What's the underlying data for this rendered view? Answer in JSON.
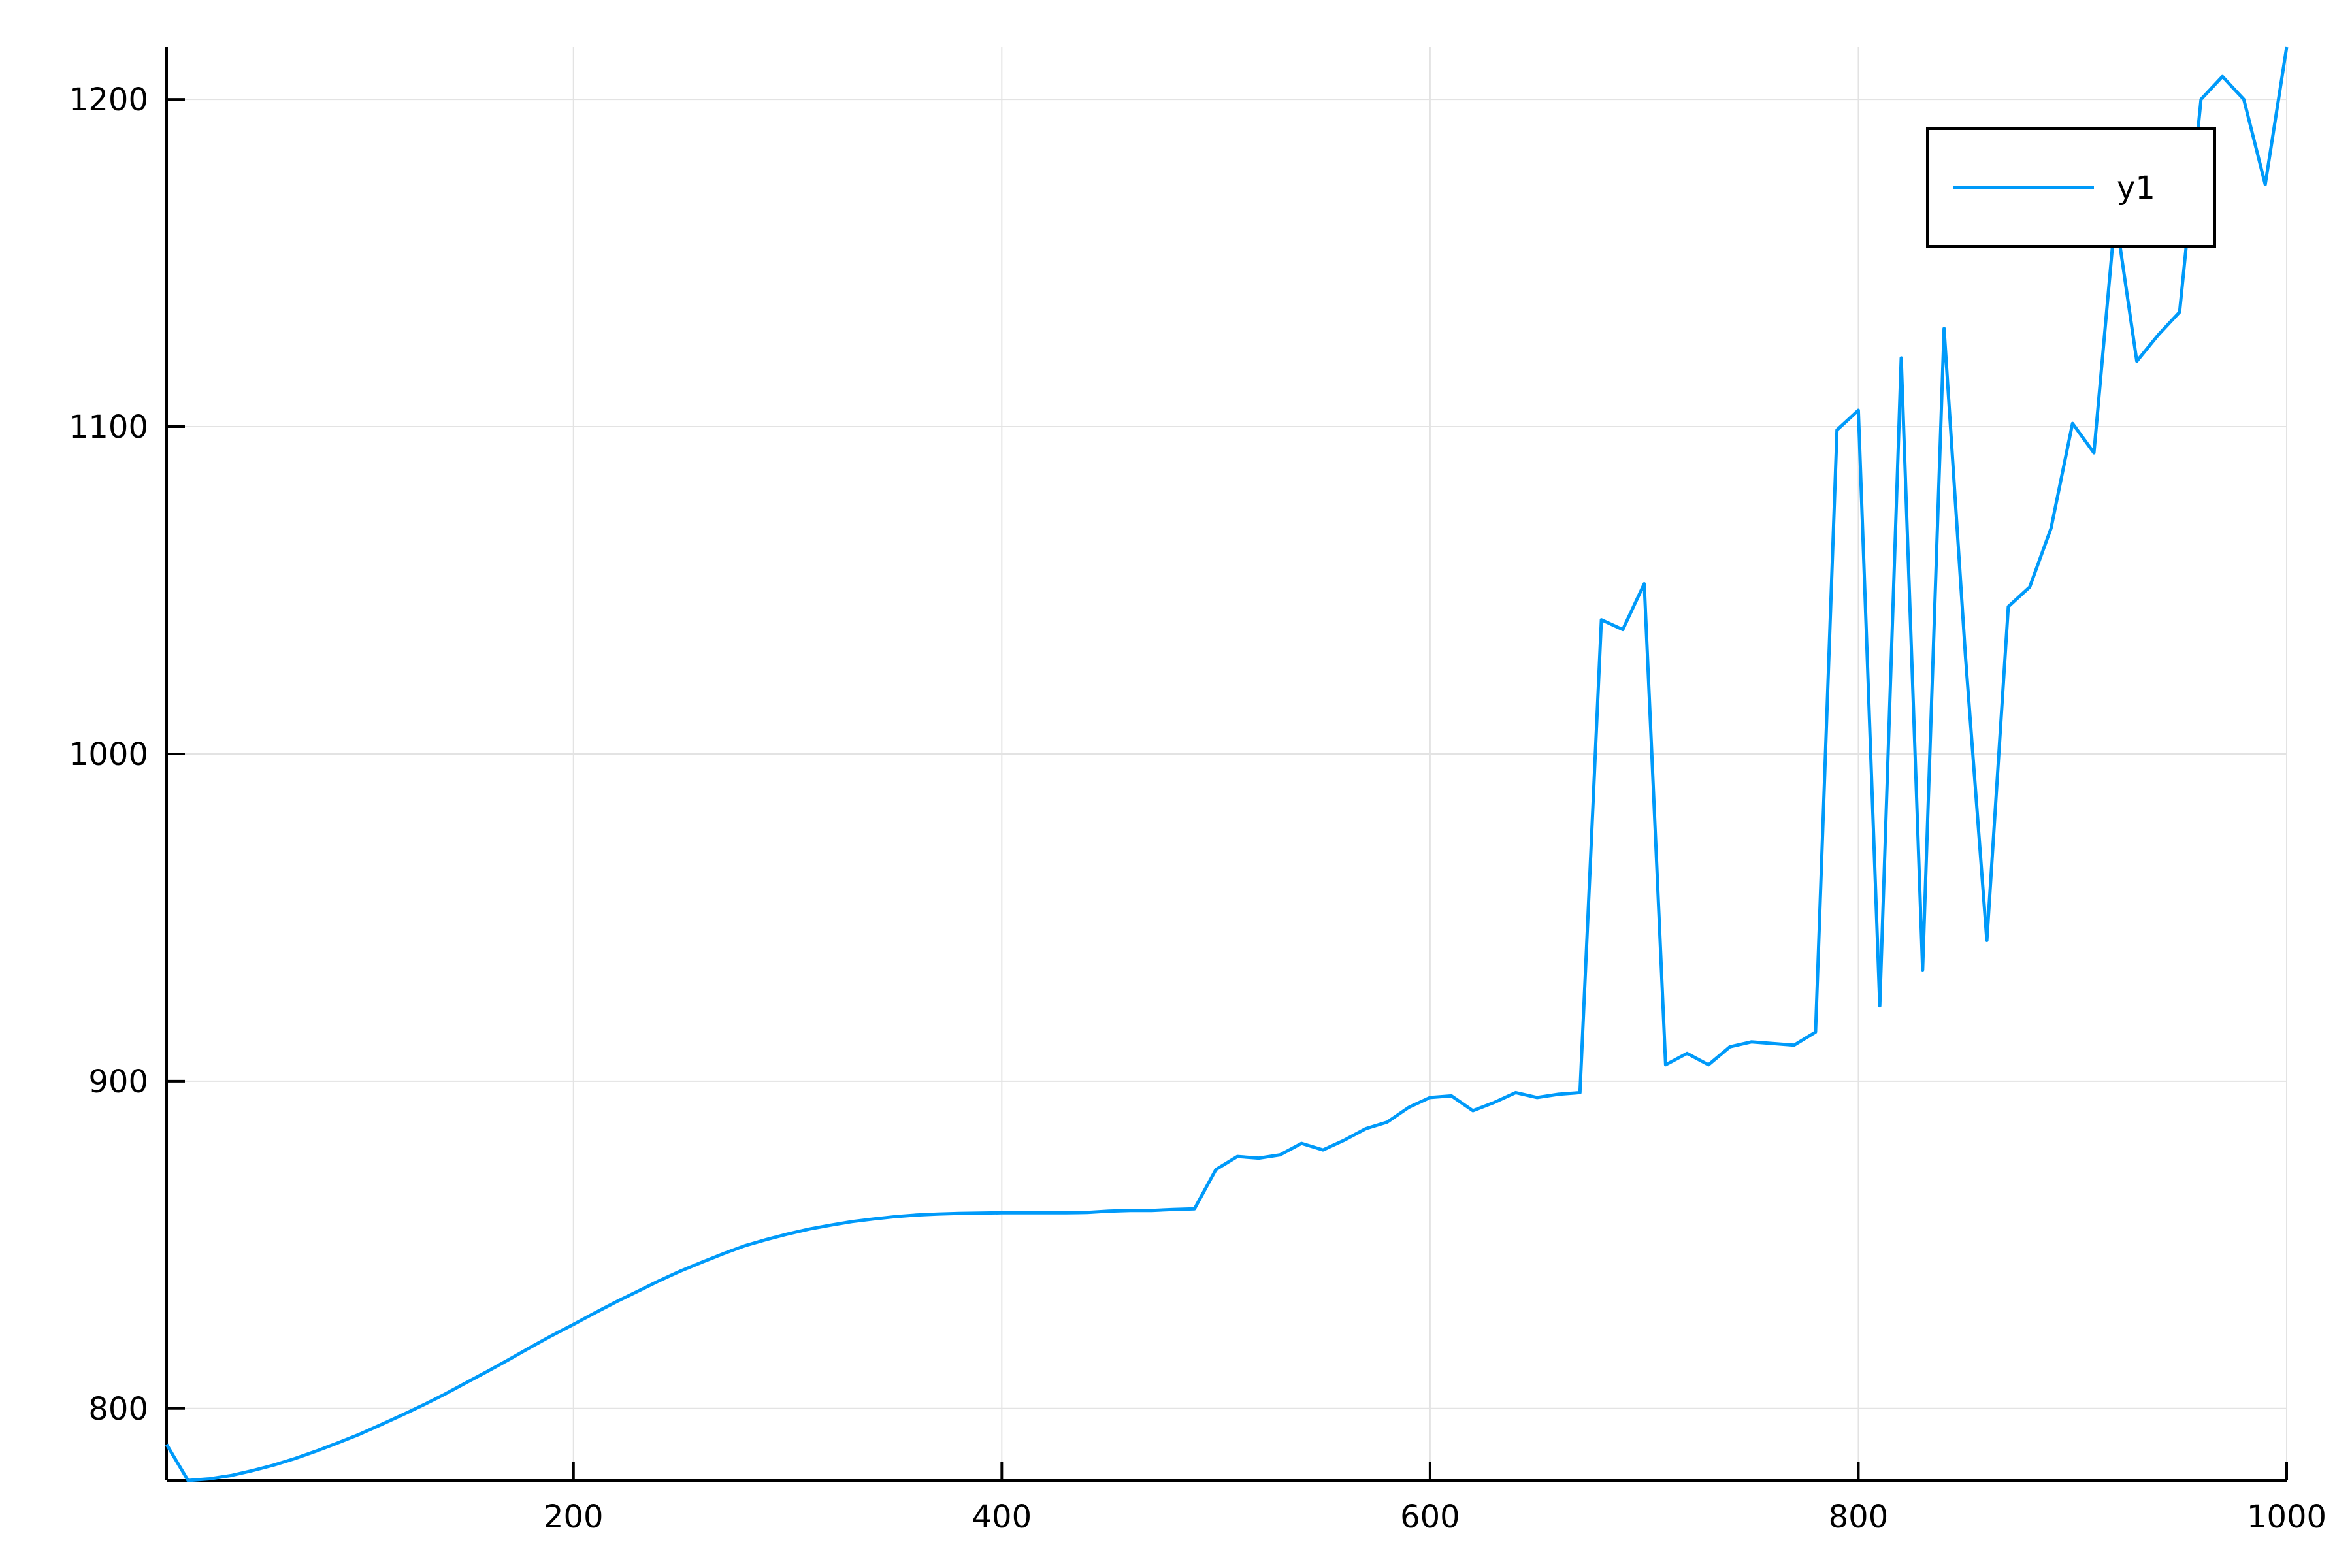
{
  "chart_data": {
    "type": "line",
    "title": "",
    "xlabel": "",
    "ylabel": "",
    "xlim": [
      10,
      1000
    ],
    "ylim": [
      778,
      1216
    ],
    "xticks": [
      200,
      400,
      600,
      800,
      1000
    ],
    "yticks": [
      800,
      900,
      1000,
      1100,
      1200
    ],
    "xtick_labels": [
      "200",
      "400",
      "600",
      "800",
      "1000"
    ],
    "ytick_labels": [
      "800",
      "900",
      "1000",
      "1100",
      "1200"
    ],
    "grid": true,
    "legend": {
      "position": "top-right",
      "entries": [
        "y1"
      ]
    },
    "series": [
      {
        "name": "y1",
        "color": "#009AF9",
        "x": [
          10,
          20,
          30,
          40,
          50,
          60,
          70,
          80,
          90,
          100,
          110,
          120,
          130,
          140,
          150,
          160,
          170,
          180,
          190,
          200,
          210,
          220,
          230,
          240,
          250,
          260,
          270,
          280,
          290,
          300,
          310,
          320,
          330,
          340,
          350,
          360,
          370,
          380,
          390,
          400,
          410,
          420,
          430,
          440,
          450,
          460,
          470,
          480,
          490,
          500,
          510,
          520,
          530,
          540,
          550,
          560,
          570,
          580,
          590,
          600,
          610,
          620,
          630,
          640,
          650,
          660,
          670,
          680,
          690,
          700,
          710,
          720,
          730,
          740,
          750,
          760,
          770,
          780,
          790,
          800,
          810,
          820,
          830,
          840,
          850,
          860,
          870,
          880,
          890,
          900,
          910,
          920,
          930,
          940,
          950,
          960,
          970,
          980,
          990,
          1000
        ],
        "y": [
          789,
          778,
          778.5,
          779.5,
          781,
          782.7,
          784.7,
          787,
          789.5,
          792.1,
          795,
          798,
          801.1,
          804.4,
          807.9,
          811.4,
          815,
          818.7,
          822.3,
          825.7,
          829.2,
          832.6,
          835.8,
          839,
          842,
          844.7,
          847.3,
          849.7,
          851.6,
          853.3,
          854.8,
          856,
          857.1,
          857.9,
          858.6,
          859.1,
          859.4,
          859.6,
          859.7,
          859.8,
          859.8,
          859.8,
          859.8,
          859.9,
          860.3,
          860.5,
          860.5,
          860.8,
          861,
          873,
          877,
          876.5,
          877.5,
          881,
          879,
          882,
          885.5,
          887.5,
          892,
          895,
          895.5,
          891,
          893.5,
          896.5,
          895,
          896,
          896.5,
          1041,
          1038,
          1052,
          905,
          908.5,
          905,
          910.5,
          912,
          911.5,
          911,
          915,
          1099,
          1105,
          923,
          1121,
          934,
          1130,
          1030,
          943,
          1045,
          1051,
          1069,
          1101,
          1092,
          1165,
          1120,
          1128,
          1135,
          1200,
          1207,
          1200,
          1174,
          1216
        ]
      }
    ]
  }
}
